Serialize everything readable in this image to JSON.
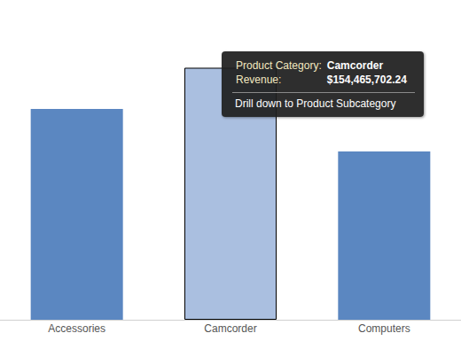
{
  "chart_data": {
    "type": "bar",
    "categories": [
      "Accessories",
      "Camcorder",
      "Computers"
    ],
    "values": [
      129200000,
      154465702.24,
      103200000
    ],
    "colors": [
      "#5b87c1",
      "#aabfe0",
      "#5b87c1"
    ],
    "ylim": [
      0,
      196000000
    ],
    "grid": false,
    "tick_labels": "x",
    "tooltip": {
      "category": "Camcorder",
      "rows": [
        {
          "label": "Product Category:",
          "value": "Camcorder"
        },
        {
          "label": "Revenue:",
          "value": "$154,465,702.24"
        }
      ],
      "action": "Drill down to Product Subcategory"
    }
  }
}
